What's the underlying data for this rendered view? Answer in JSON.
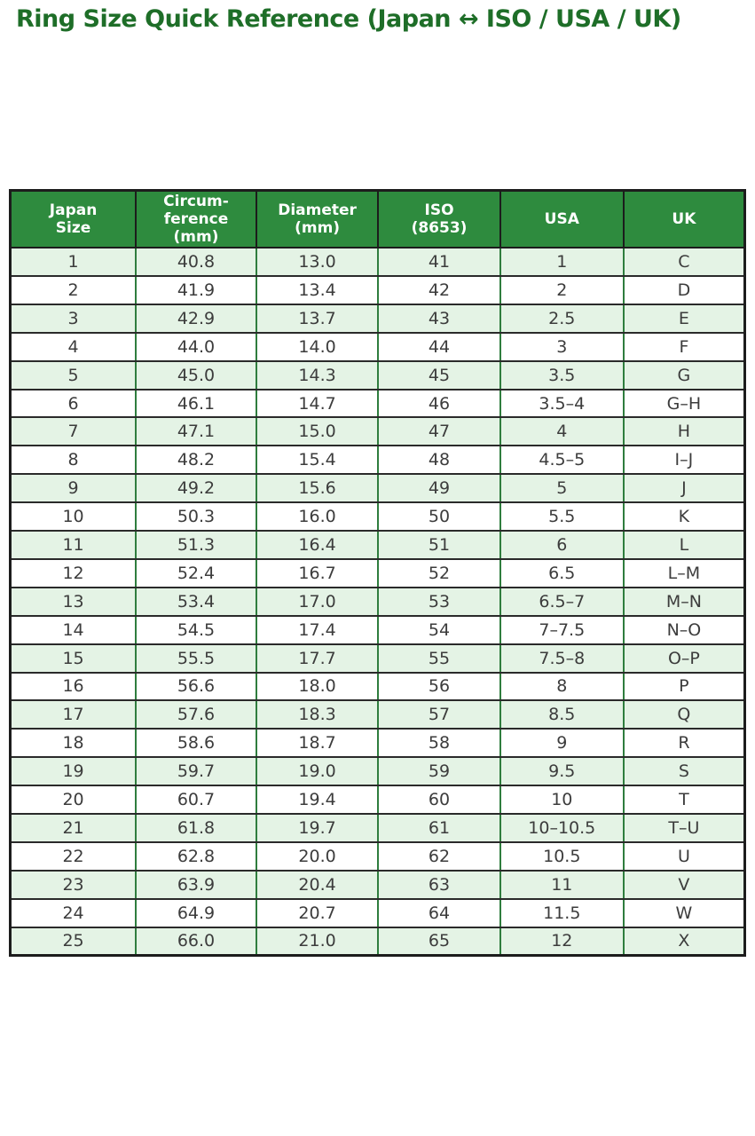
{
  "page": {
    "title": "Ring Size Quick Reference (Japan ↔ ISO / USA / UK)"
  },
  "colors": {
    "title_green": "#1e6e28",
    "header_bg": "#2e8b3e",
    "header_text": "#ffffff",
    "row_alt_bg": "#e4f3e5",
    "row_bg": "#ffffff",
    "border_dark": "#2a2a2a",
    "border_green": "#2f7d3e",
    "outer_border": "#1c1c1c",
    "cell_text": "#3c3c3c"
  },
  "chart_data": {
    "type": "table",
    "title": "Ring Size Quick Reference (Japan ↔ ISO / USA / UK)",
    "columns": [
      "Japan Size",
      "Circumference (mm)",
      "Diameter (mm)",
      "ISO (8653)",
      "USA",
      "UK"
    ],
    "header_rows": [
      [
        "Japan\nSize",
        "Circum-\nference\n(mm)",
        "Diameter\n(mm)",
        "ISO\n(8653)",
        "USA",
        "UK"
      ]
    ],
    "rows": [
      [
        "1",
        "40.8",
        "13.0",
        "41",
        "1",
        "C"
      ],
      [
        "2",
        "41.9",
        "13.4",
        "42",
        "2",
        "D"
      ],
      [
        "3",
        "42.9",
        "13.7",
        "43",
        "2.5",
        "E"
      ],
      [
        "4",
        "44.0",
        "14.0",
        "44",
        "3",
        "F"
      ],
      [
        "5",
        "45.0",
        "14.3",
        "45",
        "3.5",
        "G"
      ],
      [
        "6",
        "46.1",
        "14.7",
        "46",
        "3.5–4",
        "G–H"
      ],
      [
        "7",
        "47.1",
        "15.0",
        "47",
        "4",
        "H"
      ],
      [
        "8",
        "48.2",
        "15.4",
        "48",
        "4.5–5",
        "I–J"
      ],
      [
        "9",
        "49.2",
        "15.6",
        "49",
        "5",
        "J"
      ],
      [
        "10",
        "50.3",
        "16.0",
        "50",
        "5.5",
        "K"
      ],
      [
        "11",
        "51.3",
        "16.4",
        "51",
        "6",
        "L"
      ],
      [
        "12",
        "52.4",
        "16.7",
        "52",
        "6.5",
        "L–M"
      ],
      [
        "13",
        "53.4",
        "17.0",
        "53",
        "6.5–7",
        "M–N"
      ],
      [
        "14",
        "54.5",
        "17.4",
        "54",
        "7–7.5",
        "N–O"
      ],
      [
        "15",
        "55.5",
        "17.7",
        "55",
        "7.5–8",
        "O–P"
      ],
      [
        "16",
        "56.6",
        "18.0",
        "56",
        "8",
        "P"
      ],
      [
        "17",
        "57.6",
        "18.3",
        "57",
        "8.5",
        "Q"
      ],
      [
        "18",
        "58.6",
        "18.7",
        "58",
        "9",
        "R"
      ],
      [
        "19",
        "59.7",
        "19.0",
        "59",
        "9.5",
        "S"
      ],
      [
        "20",
        "60.7",
        "19.4",
        "60",
        "10",
        "T"
      ],
      [
        "21",
        "61.8",
        "19.7",
        "61",
        "10–10.5",
        "T–U"
      ],
      [
        "22",
        "62.8",
        "20.0",
        "62",
        "10.5",
        "U"
      ],
      [
        "23",
        "63.9",
        "20.4",
        "63",
        "11",
        "V"
      ],
      [
        "24",
        "64.9",
        "20.7",
        "64",
        "11.5",
        "W"
      ],
      [
        "25",
        "66.0",
        "21.0",
        "65",
        "12",
        "X"
      ]
    ]
  }
}
